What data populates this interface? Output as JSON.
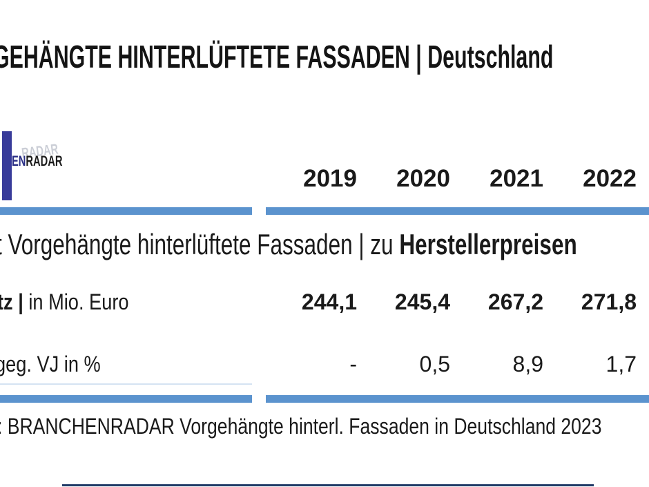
{
  "colors": {
    "accent": "#5b93ce",
    "logo_blue": "#383b9a",
    "logo_navy": "#2b2f86",
    "ghost": "#c2c6d0",
    "faint_line": "#d5e3f2",
    "rule_navy": "#203a67",
    "text": "#1a1a1a"
  },
  "title": {
    "text": "GEHÄNGTE HINTERLÜFTETE FASSADEN | Deutschland"
  },
  "logo": {
    "text_primary": "EN",
    "text_secondary": "RADAR",
    "ghost_text": "RADAR"
  },
  "table": {
    "years": [
      "2019",
      "2020",
      "2021",
      "2022"
    ],
    "section": {
      "fragment": "t ",
      "regular": "Vorgehängte hinterlüftete Fassaden | zu ",
      "bold": "Herstellerpreisen"
    },
    "rows": [
      {
        "label_bold": "tz | ",
        "label_rest": "in Mio. Euro",
        "values": [
          "244,1",
          "245,4",
          "267,2",
          "271,8"
        ]
      },
      {
        "label_bold": "",
        "label_rest": "geg. VJ in %",
        "values": [
          "-",
          "0,5",
          "8,9",
          "1,7"
        ]
      }
    ]
  },
  "source": {
    "text": ": BRANCHENRADAR Vorgehängte hinterl. Fassaden in Deutschland 2023"
  },
  "chart_data": {
    "type": "table",
    "title": "GEHÄNGTE HINTERLÜFTETE FASSADEN | Deutschland",
    "section_header": "t Vorgehängte hinterlüftete Fassaden | zu Herstellerpreisen",
    "categories": [
      "2019",
      "2020",
      "2021",
      "2022"
    ],
    "series": [
      {
        "name": "tz | in Mio. Euro",
        "values": [
          244.1,
          245.4,
          267.2,
          271.8
        ]
      },
      {
        "name": "geg. VJ in %",
        "values": [
          null,
          0.5,
          8.9,
          1.7
        ]
      }
    ],
    "source": ": BRANCHENRADAR Vorgehängte hinterl. Fassaden in Deutschland 2023"
  }
}
